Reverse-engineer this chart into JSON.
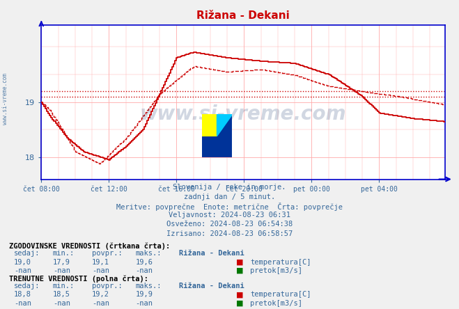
{
  "title": "Rižana - Dekani",
  "title_color": "#cc0000",
  "bg_color": "#f0f0f0",
  "plot_bg_color": "#ffffff",
  "grid_color": "#ffaaaa",
  "axis_color": "#0000cc",
  "text_color": "#336699",
  "xlabel_times": [
    "čet 08:00",
    "čet 12:00",
    "čet 16:00",
    "čet 20:00",
    "pet 00:00",
    "pet 04:00"
  ],
  "yticks": [
    18,
    19
  ],
  "ylim": [
    17.6,
    20.4
  ],
  "xlim": [
    0,
    287
  ],
  "ypovpr_hist": 19.1,
  "ypovpr_curr": 19.2,
  "watermark": "www.si-vreme.com",
  "subtitle_lines": [
    "Slovenija / reke in morje.",
    "zadnji dan / 5 minut.",
    "Meritve: povprečne  Enote: metrične  Črta: povprečje",
    "Veljavnost: 2024-08-23 06:31",
    "Osveženo: 2024-08-23 06:54:38",
    "Izrisano: 2024-08-23 06:58:57"
  ],
  "table_hist_label": "ZGODOVINSKE VREDNOSTI (črtkana črta):",
  "table_curr_label": "TRENUTNE VREDNOSTI (polna črta):",
  "table_header": [
    "sedaj:",
    "min.:",
    "povpr.:",
    "maks.:",
    "Rižana - Dekani"
  ],
  "table_hist_temp": [
    "19,0",
    "17,9",
    "19,1",
    "19,6"
  ],
  "table_hist_flow": [
    "-nan",
    "-nan",
    "-nan",
    "-nan"
  ],
  "table_curr_temp": [
    "18,8",
    "18,5",
    "19,2",
    "19,9"
  ],
  "table_curr_flow": [
    "-nan",
    "-nan",
    "-nan",
    "-nan"
  ],
  "line_color_solid": "#cc0000",
  "line_color_dashed": "#cc0000",
  "hline_color": "#cc0000",
  "temp_icon_color": "#cc0000",
  "flow_icon_color": "#007700"
}
